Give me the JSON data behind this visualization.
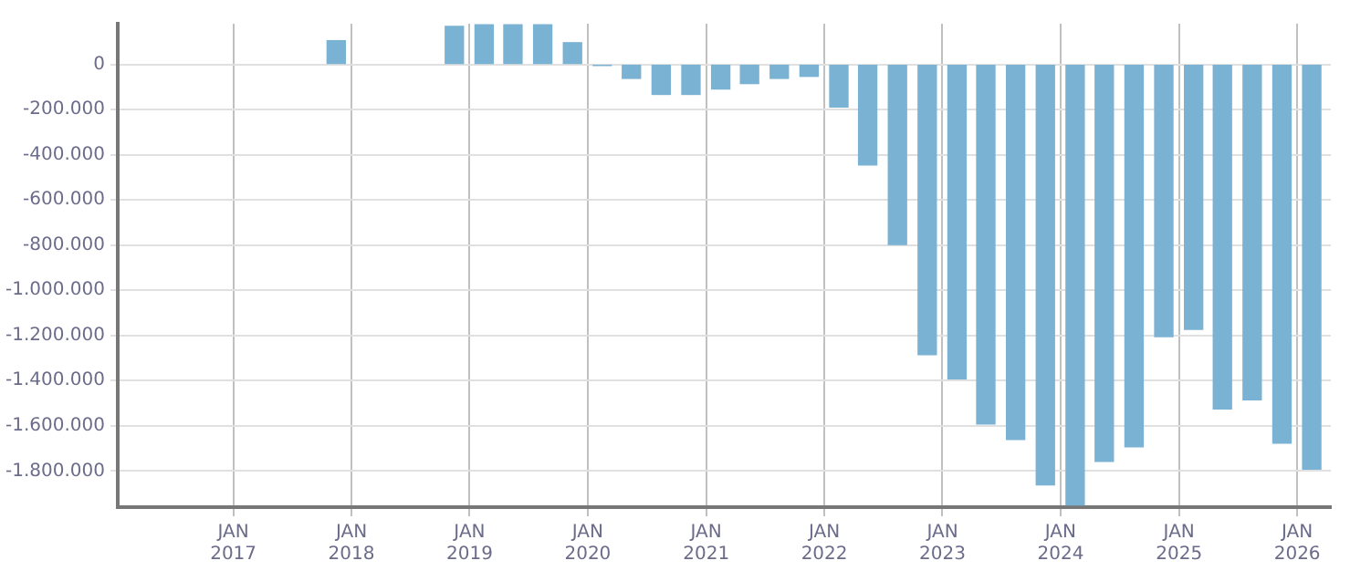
{
  "chart_data": {
    "type": "bar",
    "color": "#7ab2d4",
    "x": [
      "2017-11-15",
      "2018-11-15",
      "2019-02-15",
      "2019-05-15",
      "2019-08-15",
      "2019-11-15",
      "2020-02-15",
      "2020-05-15",
      "2020-08-15",
      "2020-11-15",
      "2021-02-15",
      "2021-05-15",
      "2021-08-15",
      "2021-11-15",
      "2022-02-15",
      "2022-05-15",
      "2022-08-15",
      "2022-11-15",
      "2023-02-15",
      "2023-05-15",
      "2023-08-15",
      "2023-11-15",
      "2024-02-15",
      "2024-05-15",
      "2024-08-15",
      "2024-11-15",
      "2025-02-15",
      "2025-05-15",
      "2025-08-15",
      "2025-11-15",
      "2026-02-15"
    ],
    "values": [
      105000,
      168000,
      175000,
      175000,
      175000,
      96000,
      -5000,
      -62000,
      -133000,
      -133000,
      -109000,
      -85000,
      -62000,
      -53000,
      -189000,
      -445000,
      -797000,
      -1285000,
      -1392000,
      -1592000,
      -1661000,
      -1861000,
      -1950000,
      -1757000,
      -1693000,
      -1205000,
      -1173000,
      -1525000,
      -1485000,
      -1677000,
      -1792000
    ],
    "xlim": [
      "2016-01-10",
      "2026-04-15"
    ],
    "xticks": [
      {
        "value": "2017-01-01",
        "label": "JAN 2017"
      },
      {
        "value": "2018-01-01",
        "label": "JAN 2018"
      },
      {
        "value": "2019-01-01",
        "label": "JAN 2019"
      },
      {
        "value": "2020-01-01",
        "label": "JAN 2020"
      },
      {
        "value": "2021-01-01",
        "label": "JAN 2021"
      },
      {
        "value": "2022-01-01",
        "label": "JAN 2022"
      },
      {
        "value": "2023-01-01",
        "label": "JAN 2023"
      },
      {
        "value": "2024-01-01",
        "label": "JAN 2024"
      },
      {
        "value": "2025-01-01",
        "label": "JAN 2025"
      },
      {
        "value": "2026-01-01",
        "label": "JAN 2026"
      }
    ],
    "ylim": [
      -1960000,
      180000
    ],
    "yticks": [
      0,
      {
        "value": -200000,
        "label": "-200.000"
      },
      {
        "value": -400000,
        "label": "-400.000"
      },
      {
        "value": -600000,
        "label": "-600.000"
      },
      {
        "value": -800000,
        "label": "-800.000"
      },
      {
        "value": -1000000,
        "label": "-1.000.000"
      },
      {
        "value": -1200000,
        "label": "-1.200.000"
      },
      {
        "value": -1400000,
        "label": "-1.400.000"
      },
      {
        "value": -1600000,
        "label": "-1.600.000"
      },
      {
        "value": -1800000,
        "label": "-1.800.000"
      }
    ],
    "grid": true,
    "legend": false
  }
}
